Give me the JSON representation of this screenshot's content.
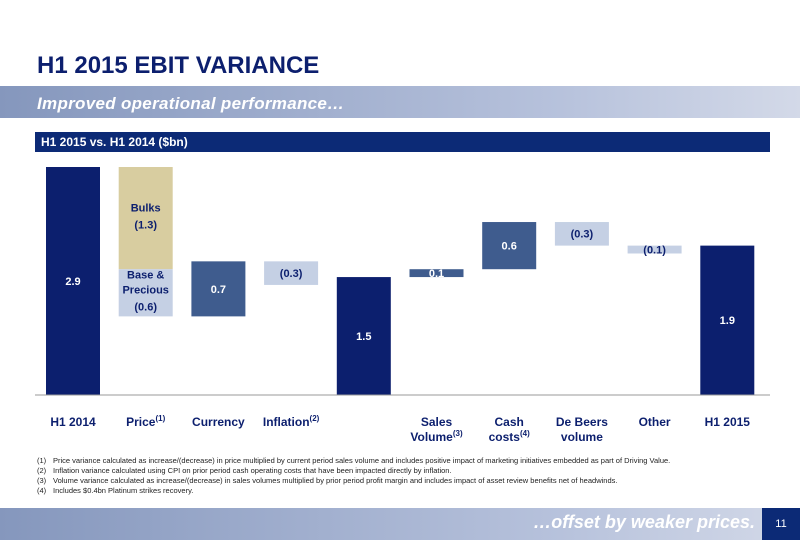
{
  "header": {
    "title": "H1 2015 EBIT VARIANCE",
    "subtitle": "Improved operational performance…"
  },
  "chart_data": {
    "type": "waterfall",
    "title": "H1 2015 vs. H1 2014 ($bn)",
    "colors": {
      "total": "#0c1f6e",
      "increase": "#3f5c8e",
      "decrease": "#c5d0e4"
    },
    "bars": [
      {
        "label": [
          "H1 2014"
        ],
        "note": null,
        "kind": "total",
        "values": [
          2.9
        ]
      },
      {
        "label": [
          "Price"
        ],
        "note": "(1)",
        "kind": "delta",
        "values": [
          -1.3,
          -0.6
        ],
        "value_labels": [
          "(1.3)",
          "(0.6)"
        ],
        "segment_names": [
          [
            "Bulks"
          ],
          [
            "Base &",
            "Precious"
          ]
        ],
        "segment_colors": [
          "#d8cda0",
          "#c5d0e4"
        ]
      },
      {
        "label": [
          "Currency"
        ],
        "note": null,
        "kind": "delta",
        "values": [
          0.7
        ]
      },
      {
        "label": [
          "Inflation"
        ],
        "note": "(2)",
        "kind": "delta",
        "values": [
          -0.3
        ],
        "value_labels": [
          "(0.3)"
        ]
      },
      {
        "label": null,
        "note": null,
        "kind": "total",
        "values": [
          1.5
        ]
      },
      {
        "label": [
          "Sales",
          "Volume"
        ],
        "note": "(3)",
        "kind": "delta",
        "values": [
          0.1
        ]
      },
      {
        "label": [
          "Cash",
          "costs"
        ],
        "note": "(4)",
        "kind": "delta",
        "values": [
          0.6
        ]
      },
      {
        "label": [
          "De Beers",
          "volume"
        ],
        "note": null,
        "kind": "delta",
        "values": [
          -0.3
        ],
        "value_labels": [
          "(0.3)"
        ]
      },
      {
        "label": [
          "Other"
        ],
        "note": null,
        "kind": "delta",
        "values": [
          -0.1
        ],
        "value_labels": [
          "(0.1)"
        ]
      },
      {
        "label": [
          "H1 2015"
        ],
        "note": null,
        "kind": "total",
        "values": [
          1.9
        ]
      }
    ]
  },
  "footnotes": [
    [
      "(1)",
      "Price variance calculated as increase/(decrease) in price multiplied by current period sales volume and includes positive impact of marketing initiatives embedded as part of Driving Value."
    ],
    [
      "(2)",
      "Inflation variance calculated using CPI on prior period cash operating costs that have been impacted directly by inflation."
    ],
    [
      "(3)",
      "Volume variance calculated as increase/(decrease) in sales volumes multiplied by prior period profit margin and includes impact of asset review benefits net of headwinds."
    ],
    [
      "(4)",
      "Includes $0.4bn Platinum strikes recovery."
    ]
  ],
  "footer": {
    "text": "…offset by weaker prices.",
    "page": "11"
  }
}
